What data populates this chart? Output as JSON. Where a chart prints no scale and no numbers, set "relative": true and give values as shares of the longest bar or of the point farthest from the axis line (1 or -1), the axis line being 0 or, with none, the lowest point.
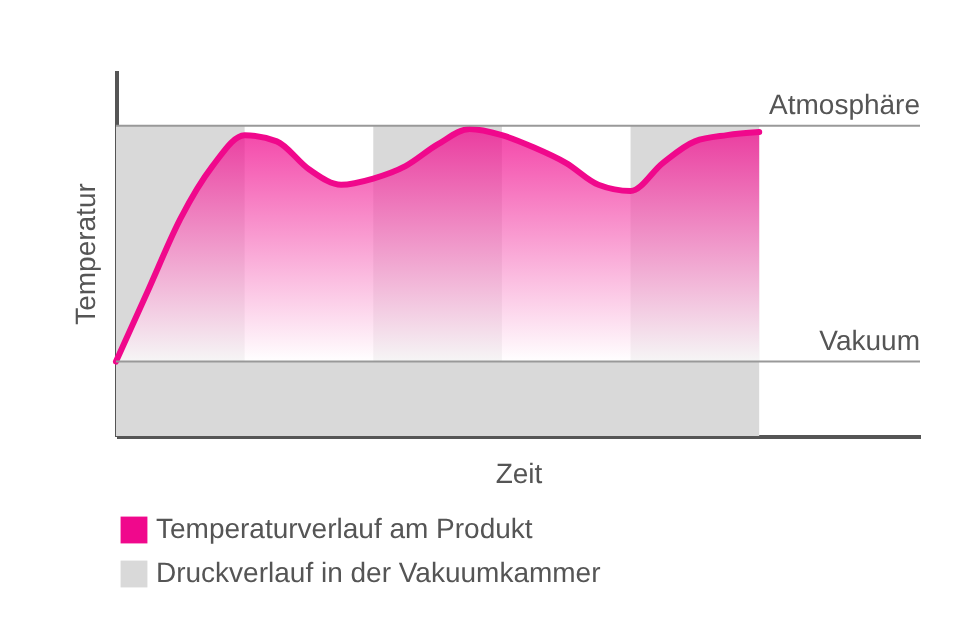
{
  "chart_data": {
    "type": "area",
    "relative": true,
    "xlabel": "Zeit",
    "ylabel": "Temperatur",
    "categories": [
      null,
      null,
      null,
      null,
      null,
      null,
      null,
      null,
      null,
      null,
      null,
      null,
      null,
      null,
      null,
      null,
      null,
      null,
      null,
      null,
      null,
      null,
      null,
      null,
      null,
      null
    ],
    "series": [
      {
        "name": "Temperaturverlauf am Produkt",
        "color": "#f0088c",
        "values": [
          0.24,
          0.47,
          0.7,
          0.87,
          0.97,
          0.95,
          0.86,
          0.81,
          0.83,
          0.87,
          0.94,
          0.99,
          0.97,
          0.93,
          0.88,
          0.81,
          0.79,
          0.88,
          0.95,
          0.97,
          0.98,
          null,
          null,
          null,
          null,
          null
        ]
      },
      {
        "name": "Druckverlauf in der Vakuumkammer",
        "color": "#d9d9d9",
        "values": [
          1,
          1,
          1,
          1,
          0.24,
          0.24,
          0.24,
          0.24,
          1,
          1,
          1,
          1,
          0.24,
          0.24,
          0.24,
          0.24,
          1,
          1,
          1,
          1,
          1,
          null,
          null,
          null,
          null,
          null
        ]
      }
    ],
    "ref_lines": [
      {
        "axis": "y",
        "value": 1,
        "label": "Atmosphäre",
        "color": "#999999"
      },
      {
        "axis": "y",
        "value": 0.24,
        "label": "Vakuum",
        "color": "#999999"
      }
    ],
    "legend": "bottom left",
    "grid": false
  }
}
